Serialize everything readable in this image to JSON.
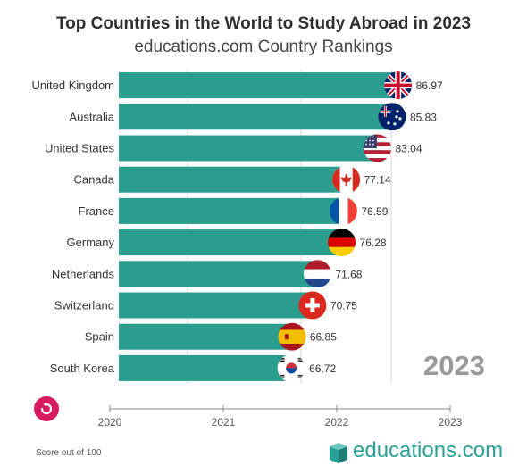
{
  "header": {
    "title": "Top Countries in the World to Study Abroad in 2023",
    "subtitle": "educations.com Country Rankings"
  },
  "footnote": "Score out of 100",
  "logo": {
    "name": "educations",
    "tld": ".com"
  },
  "controls": {
    "replay_icon": "replay-icon"
  },
  "colors": {
    "bar": "#2a9d8f",
    "replay": "#d81b60",
    "year_label": "#999999"
  },
  "chart_data": {
    "type": "bar",
    "orientation": "horizontal",
    "title": "Top Countries in the World to Study Abroad in 2023",
    "subtitle": "educations.com Country Rankings",
    "year_label": "2023",
    "categories": [
      "United Kingdom",
      "Australia",
      "United States",
      "Canada",
      "France",
      "Germany",
      "Netherlands",
      "Switzerland",
      "Spain",
      "South Korea"
    ],
    "values": [
      86.97,
      85.83,
      83.04,
      77.14,
      76.59,
      76.28,
      71.68,
      70.75,
      66.85,
      66.72
    ],
    "value_labels": [
      "86.97",
      "85.83",
      "83.04",
      "77.14",
      "76.59",
      "76.28",
      "71.68",
      "70.75",
      "66.85",
      "66.72"
    ],
    "flags": [
      "uk-flag-icon",
      "australia-flag-icon",
      "us-flag-icon",
      "canada-flag-icon",
      "france-flag-icon",
      "germany-flag-icon",
      "netherlands-flag-icon",
      "switzerland-flag-icon",
      "spain-flag-icon",
      "south-korea-flag-icon"
    ],
    "timeline": {
      "ticks": [
        "2020",
        "2021",
        "2022",
        "2023"
      ],
      "current": "2023"
    },
    "xlim": [
      0,
      100
    ],
    "grid": true
  }
}
